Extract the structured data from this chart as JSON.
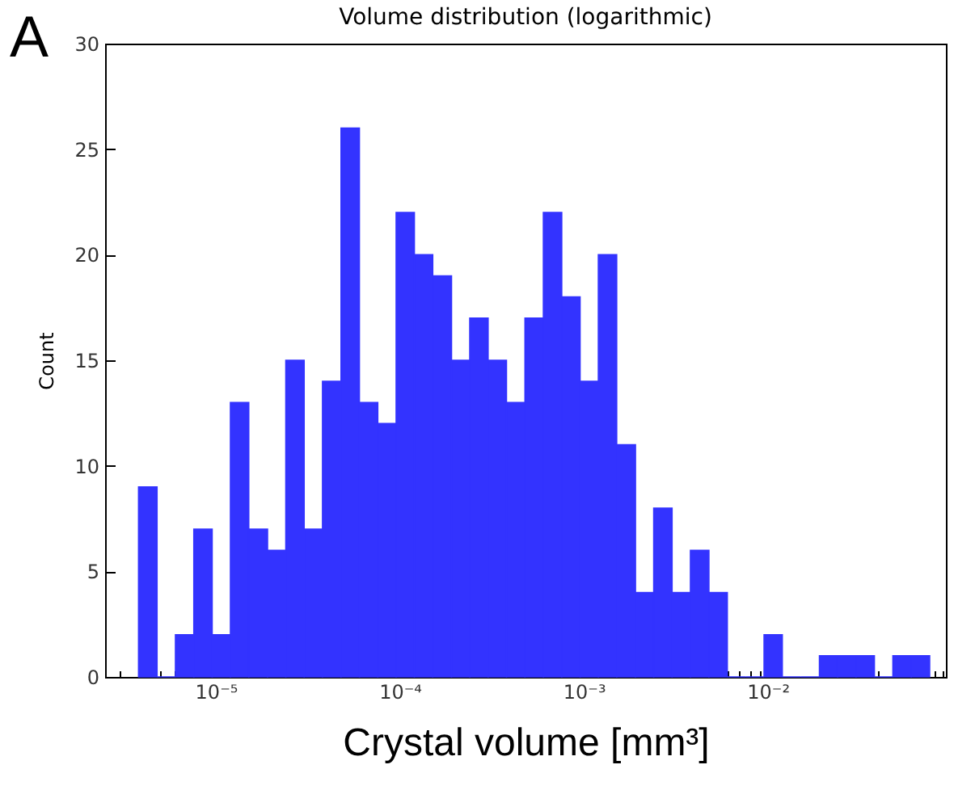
{
  "chart_data": {
    "type": "histogram",
    "title": "Volume distribution (logarithmic)",
    "xlabel": "Crystal volume [mm³]",
    "ylabel": "Count",
    "annotations": [
      "A"
    ],
    "bins": [
      3.8e-06,
      4.79e-06,
      6.03e-06,
      7.59e-06,
      9.55e-06,
      1.2e-05,
      1.51e-05,
      1.91e-05,
      2.4e-05,
      3.02e-05,
      3.8e-05,
      4.79e-05,
      6.03e-05,
      7.59e-05,
      9.55e-05,
      0.00012,
      0.000151,
      0.000191,
      0.00024,
      0.000302,
      0.00038,
      0.000479,
      0.000603,
      0.000759,
      0.000955,
      0.0012,
      0.00151,
      0.00191,
      0.0024,
      0.00302,
      0.0038,
      0.00479,
      0.00603,
      0.00759,
      0.00955,
      0.012,
      0.0151,
      0.0191,
      0.024,
      0.0302,
      0.038,
      0.0479,
      0.0603,
      0.0759
    ],
    "values": [
      9,
      0,
      2,
      7,
      2,
      13,
      7,
      6,
      15,
      7,
      14,
      26,
      13,
      12,
      22,
      20,
      19,
      15,
      17,
      15,
      13,
      17,
      22,
      18,
      14,
      20,
      11,
      4,
      8,
      4,
      6,
      4,
      0,
      0,
      2,
      0,
      0,
      1,
      1,
      1,
      0,
      1,
      1
    ],
    "color": "#3333ff",
    "log": "x",
    "grid": false,
    "xlim": [
      2.5e-06,
      0.093
    ],
    "xticks": [
      {
        "value": 3e-06,
        "label": null
      },
      {
        "value": 4e-06,
        "label": null
      },
      {
        "value": 5e-06,
        "label": null
      },
      {
        "value": 6e-06,
        "label": null
      },
      {
        "value": 7e-06,
        "label": null
      },
      {
        "value": 8e-06,
        "label": null
      },
      {
        "value": 9e-06,
        "label": null
      },
      {
        "value": 1e-05,
        "label": "10⁻⁵"
      },
      {
        "value": 2e-05,
        "label": null
      },
      {
        "value": 3e-05,
        "label": null
      },
      {
        "value": 4e-05,
        "label": null
      },
      {
        "value": 5e-05,
        "label": null
      },
      {
        "value": 6e-05,
        "label": null
      },
      {
        "value": 7e-05,
        "label": null
      },
      {
        "value": 8e-05,
        "label": null
      },
      {
        "value": 9e-05,
        "label": null
      },
      {
        "value": 0.0001,
        "label": "10⁻⁴"
      },
      {
        "value": 0.0002,
        "label": null
      },
      {
        "value": 0.0003,
        "label": null
      },
      {
        "value": 0.0004,
        "label": null
      },
      {
        "value": 0.0005,
        "label": null
      },
      {
        "value": 0.0006,
        "label": null
      },
      {
        "value": 0.0007,
        "label": null
      },
      {
        "value": 0.0008,
        "label": null
      },
      {
        "value": 0.0009,
        "label": null
      },
      {
        "value": 0.001,
        "label": "10⁻³"
      },
      {
        "value": 0.002,
        "label": null
      },
      {
        "value": 0.003,
        "label": null
      },
      {
        "value": 0.004,
        "label": null
      },
      {
        "value": 0.005,
        "label": null
      },
      {
        "value": 0.006,
        "label": null
      },
      {
        "value": 0.007,
        "label": null
      },
      {
        "value": 0.008,
        "label": null
      },
      {
        "value": 0.009,
        "label": null
      },
      {
        "value": 0.01,
        "label": "10⁻²"
      },
      {
        "value": 0.02,
        "label": null
      },
      {
        "value": 0.03,
        "label": null
      },
      {
        "value": 0.04,
        "label": null
      },
      {
        "value": 0.05,
        "label": null
      },
      {
        "value": 0.06,
        "label": null
      },
      {
        "value": 0.07,
        "label": null
      },
      {
        "value": 0.08,
        "label": null
      },
      {
        "value": 0.09,
        "label": null
      }
    ],
    "ylim": [
      0,
      30
    ],
    "yticks": [
      0,
      5,
      10,
      15,
      20,
      25,
      30
    ]
  }
}
